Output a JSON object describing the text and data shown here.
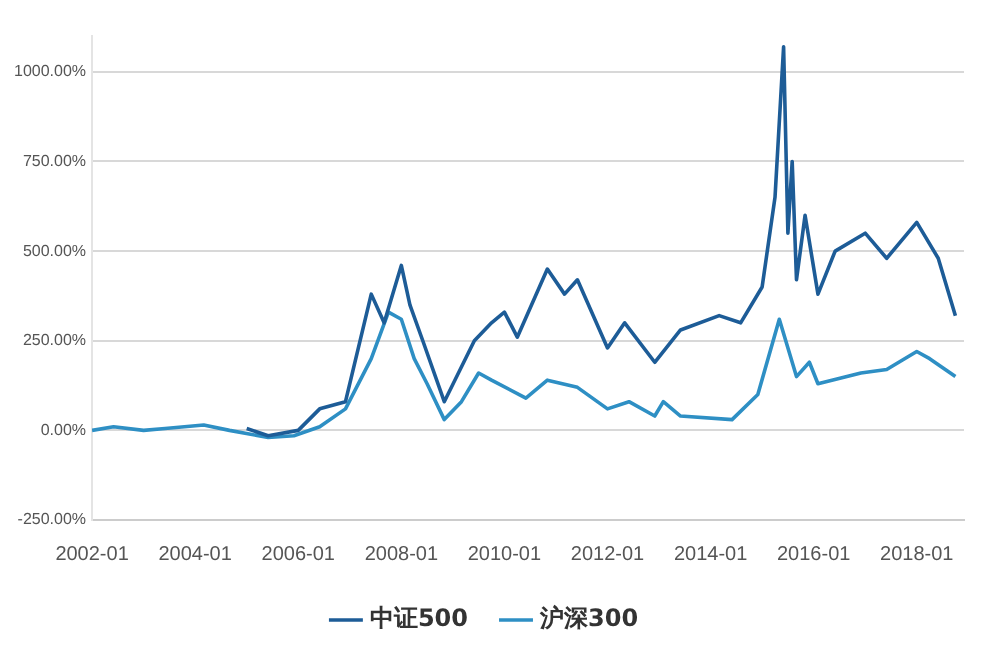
{
  "chart_data": {
    "type": "line",
    "legend": "bottom",
    "grid": "y",
    "marker": "none",
    "line_style": "solid",
    "xlim": [
      "2002-01",
      "2018-12"
    ],
    "xticks": [
      "2002-01",
      "2004-01",
      "2006-01",
      "2008-01",
      "2010-01",
      "2012-01",
      "2014-01",
      "2016-01",
      "2018-01"
    ],
    "ylim": [
      -250,
      1100
    ],
    "yticks": [
      {
        "value": -250,
        "label": "-250.00%"
      },
      {
        "value": 0,
        "label": "0.00%"
      },
      {
        "value": 250,
        "label": "250.00%"
      },
      {
        "value": 500,
        "label": "500.00%"
      },
      {
        "value": 750,
        "label": "750.00%"
      },
      {
        "value": 1000,
        "label": "1000.00%"
      }
    ],
    "series": [
      {
        "name": "中证500",
        "color": "#1d5c97",
        "x": [
          "2005-01",
          "2005-06",
          "2006-01",
          "2006-06",
          "2006-12",
          "2007-06",
          "2007-09",
          "2007-12",
          "2008-01",
          "2008-03",
          "2008-06",
          "2008-11",
          "2009-06",
          "2009-10",
          "2010-01",
          "2010-04",
          "2010-11",
          "2011-03",
          "2011-06",
          "2012-01",
          "2012-05",
          "2012-12",
          "2013-06",
          "2014-03",
          "2014-08",
          "2015-01",
          "2015-04",
          "2015-06",
          "2015-07",
          "2015-08",
          "2015-09",
          "2015-11",
          "2016-02",
          "2016-06",
          "2017-01",
          "2017-06",
          "2018-01",
          "2018-06",
          "2018-10"
        ],
        "values": [
          5,
          -15,
          0,
          60,
          80,
          380,
          300,
          420,
          460,
          350,
          250,
          80,
          250,
          300,
          330,
          260,
          450,
          380,
          420,
          230,
          300,
          190,
          280,
          320,
          300,
          400,
          650,
          1070,
          550,
          750,
          420,
          600,
          380,
          500,
          550,
          480,
          580,
          480,
          320
        ]
      },
      {
        "name": "沪深300",
        "color": "#2e8fc4",
        "x": [
          "2002-01",
          "2002-06",
          "2003-01",
          "2003-06",
          "2004-03",
          "2004-09",
          "2005-06",
          "2005-12",
          "2006-06",
          "2006-12",
          "2007-06",
          "2007-10",
          "2008-01",
          "2008-04",
          "2008-07",
          "2008-11",
          "2009-03",
          "2009-07",
          "2009-10",
          "2010-06",
          "2010-11",
          "2011-06",
          "2012-01",
          "2012-06",
          "2012-12",
          "2013-02",
          "2013-06",
          "2014-06",
          "2014-12",
          "2015-05",
          "2015-09",
          "2015-12",
          "2016-02",
          "2016-12",
          "2017-06",
          "2018-01",
          "2018-04",
          "2018-10"
        ],
        "values": [
          0,
          10,
          0,
          5,
          15,
          0,
          -20,
          -15,
          10,
          60,
          200,
          330,
          310,
          200,
          130,
          30,
          80,
          160,
          140,
          90,
          140,
          120,
          60,
          80,
          40,
          80,
          40,
          30,
          100,
          310,
          150,
          190,
          130,
          160,
          170,
          220,
          200,
          150
        ]
      }
    ]
  }
}
